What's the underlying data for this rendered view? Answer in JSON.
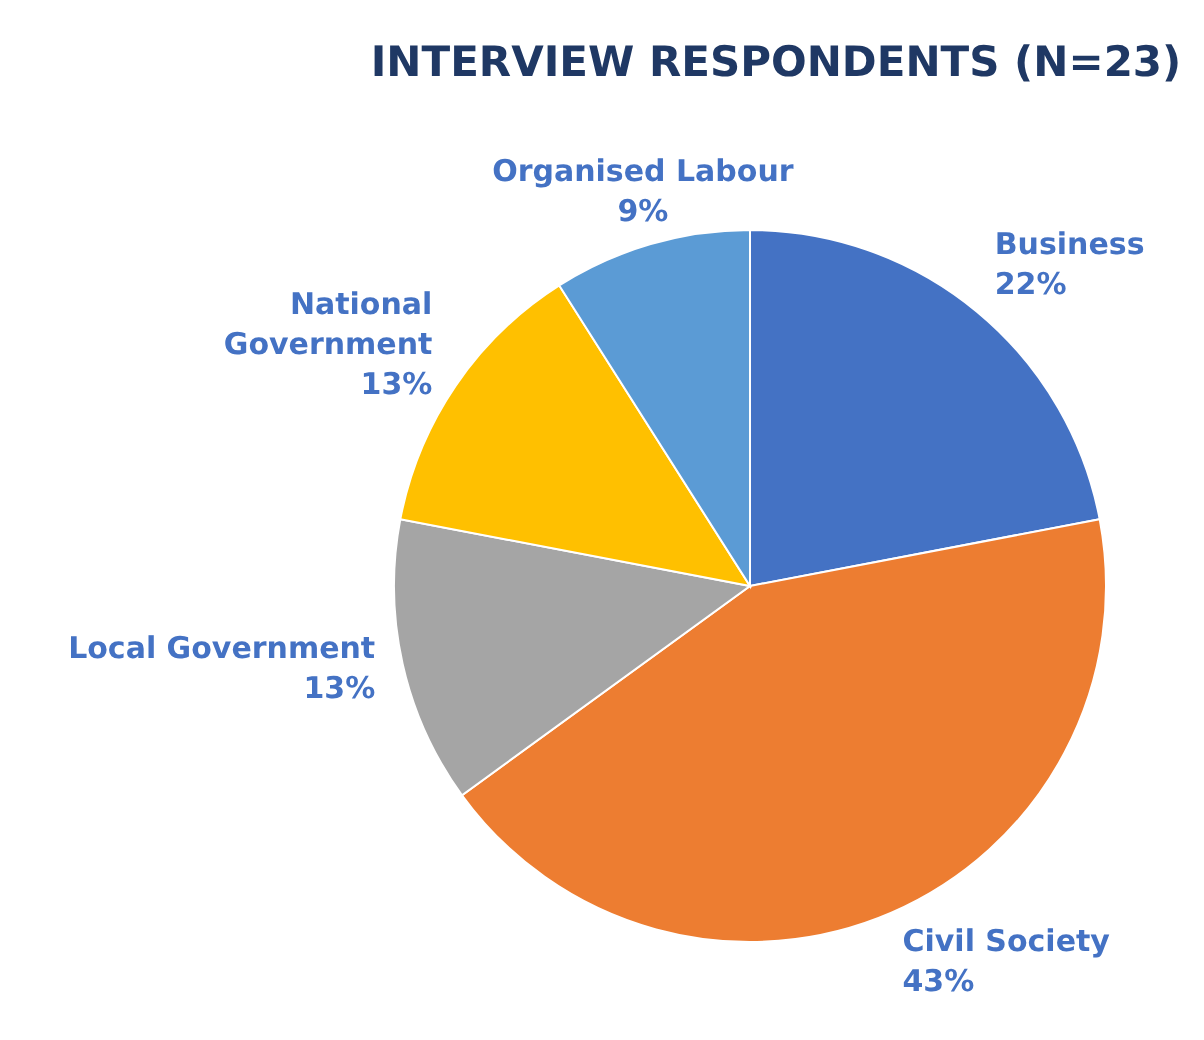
{
  "chart_data": {
    "type": "pie",
    "title": "INTERVIEW RESPONDENTS (N=23)",
    "categories": [
      "Business",
      "Civil Society",
      "Local Government",
      "National Government",
      "Organised Labour"
    ],
    "values": [
      22,
      43,
      13,
      13,
      9
    ],
    "value_labels": [
      "22%",
      "43%",
      "13%",
      "13%",
      "9%"
    ],
    "colors": [
      "#4472c4",
      "#ed7d31",
      "#a5a5a5",
      "#ffc000",
      "#5b9bd5"
    ],
    "legend": false
  }
}
